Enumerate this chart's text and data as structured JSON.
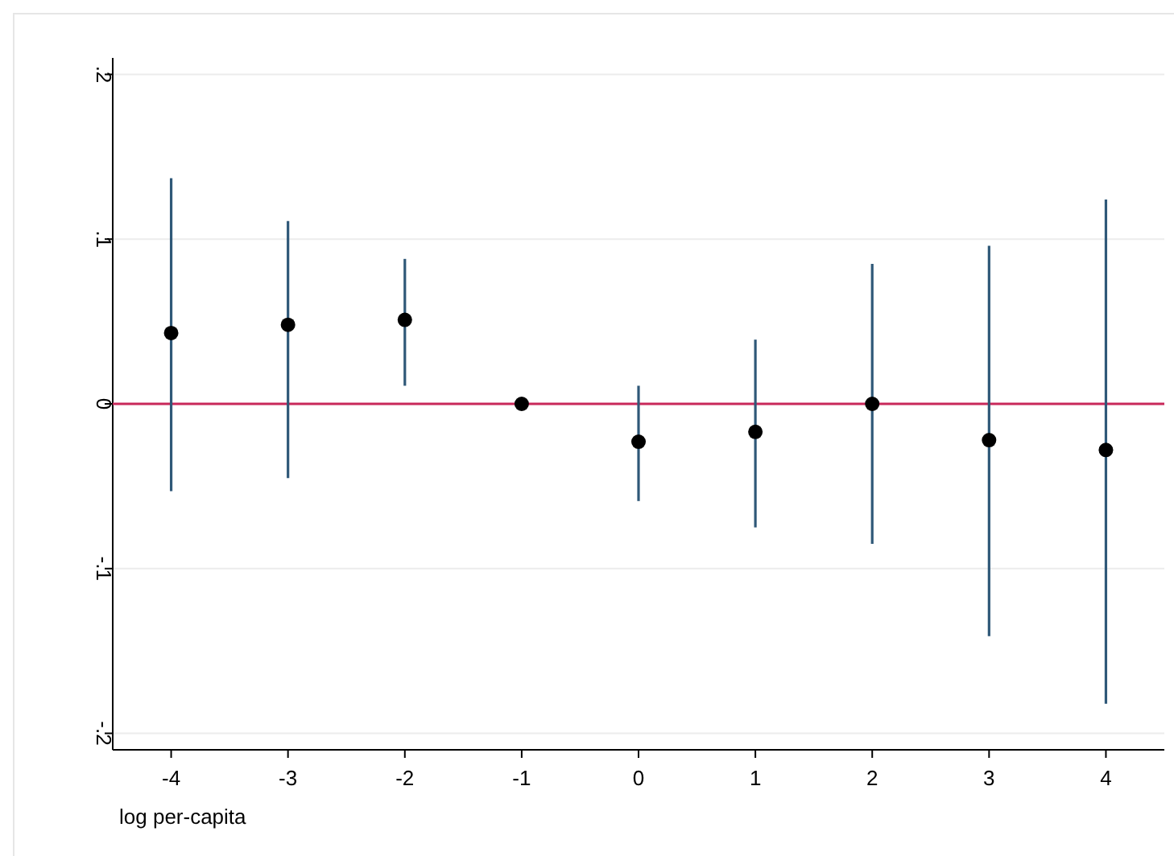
{
  "chart_data": {
    "type": "scatter",
    "xlabel": "log per-capita",
    "x": [
      -4,
      -3,
      -2,
      -1,
      0,
      1,
      2,
      3,
      4
    ],
    "series": [
      {
        "color": "#000000",
        "values": [
          0.043,
          0.048,
          0.051,
          0,
          -0.023,
          -0.017,
          0,
          -0.022,
          -0.028
        ],
        "errors": [
          [
            -0.053,
            0.137
          ],
          [
            -0.045,
            0.111
          ],
          [
            0.011,
            0.088
          ],
          null,
          [
            -0.059,
            0.011
          ],
          [
            -0.075,
            0.039
          ],
          [
            -0.085,
            0.085
          ],
          [
            -0.141,
            0.096
          ],
          [
            -0.182,
            0.124
          ]
        ]
      }
    ],
    "xlim": [
      -4.5,
      4.5
    ],
    "xticks": [
      -4,
      -3,
      -2,
      -1,
      0,
      1,
      2,
      3,
      4
    ],
    "ylim": [
      -0.21,
      0.21
    ],
    "yticks": [
      {
        "value": -0.2,
        "label": "-.2"
      },
      {
        "value": -0.1,
        "label": "-.1"
      },
      {
        "value": 0,
        "label": "0"
      },
      {
        "value": 0.1,
        "label": ".1"
      },
      {
        "value": 0.2,
        "label": ".2"
      }
    ],
    "grid": "y",
    "marker": "circle",
    "ref_lines": [
      {
        "axis": "y",
        "value": 0,
        "color": "#c8285a"
      }
    ]
  }
}
